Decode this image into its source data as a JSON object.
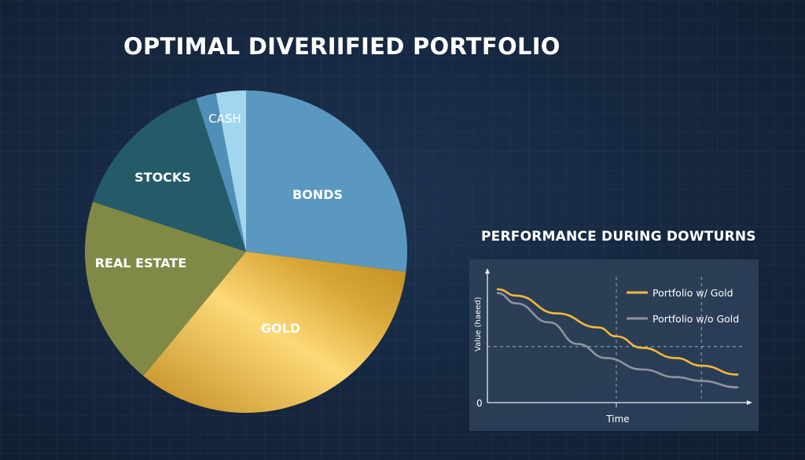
{
  "title": "OPTIMAL DIVERIIFIED PORTFOLIO",
  "chart_data": [
    {
      "type": "pie",
      "categories": [
        "BONDS",
        "GOLD",
        "REAL ESTATE",
        "STOCKS",
        "",
        "CASH"
      ],
      "values": [
        27,
        34,
        19,
        15,
        2,
        3
      ],
      "colors": [
        "#5b98bf",
        "#e6b440",
        "#818947",
        "#255a69",
        "#4f8fb8",
        "#a2d6ee"
      ]
    },
    {
      "type": "line",
      "title": "PERFORMANCE DURING DOWTURNS",
      "xlabel": "Time",
      "ylabel": "Value (haeed)",
      "y_tick_labels": [
        "0"
      ],
      "xlim": [
        0,
        10
      ],
      "ylim": [
        0,
        100
      ],
      "grid": false,
      "reference_lines": {
        "horizontal": [
          44
        ],
        "vertical": [
          5.0,
          8.3
        ]
      },
      "legend": "top-right",
      "series": [
        {
          "name": "Portfolio w/ Gold",
          "color": "#f0b93a",
          "x": [
            0.4,
            1.1,
            2.7,
            4.3,
            5.0,
            6.0,
            7.3,
            8.3,
            9.7
          ],
          "y": [
            89,
            84,
            70,
            59,
            52,
            43,
            35,
            29,
            22
          ]
        },
        {
          "name": "Portfolio w/o Gold",
          "color": "#8d949c",
          "x": [
            0.4,
            1.1,
            2.4,
            3.5,
            4.6,
            6.0,
            7.3,
            8.3,
            9.7
          ],
          "y": [
            86,
            78,
            63,
            46,
            35,
            26,
            20,
            17,
            12
          ]
        }
      ]
    }
  ]
}
